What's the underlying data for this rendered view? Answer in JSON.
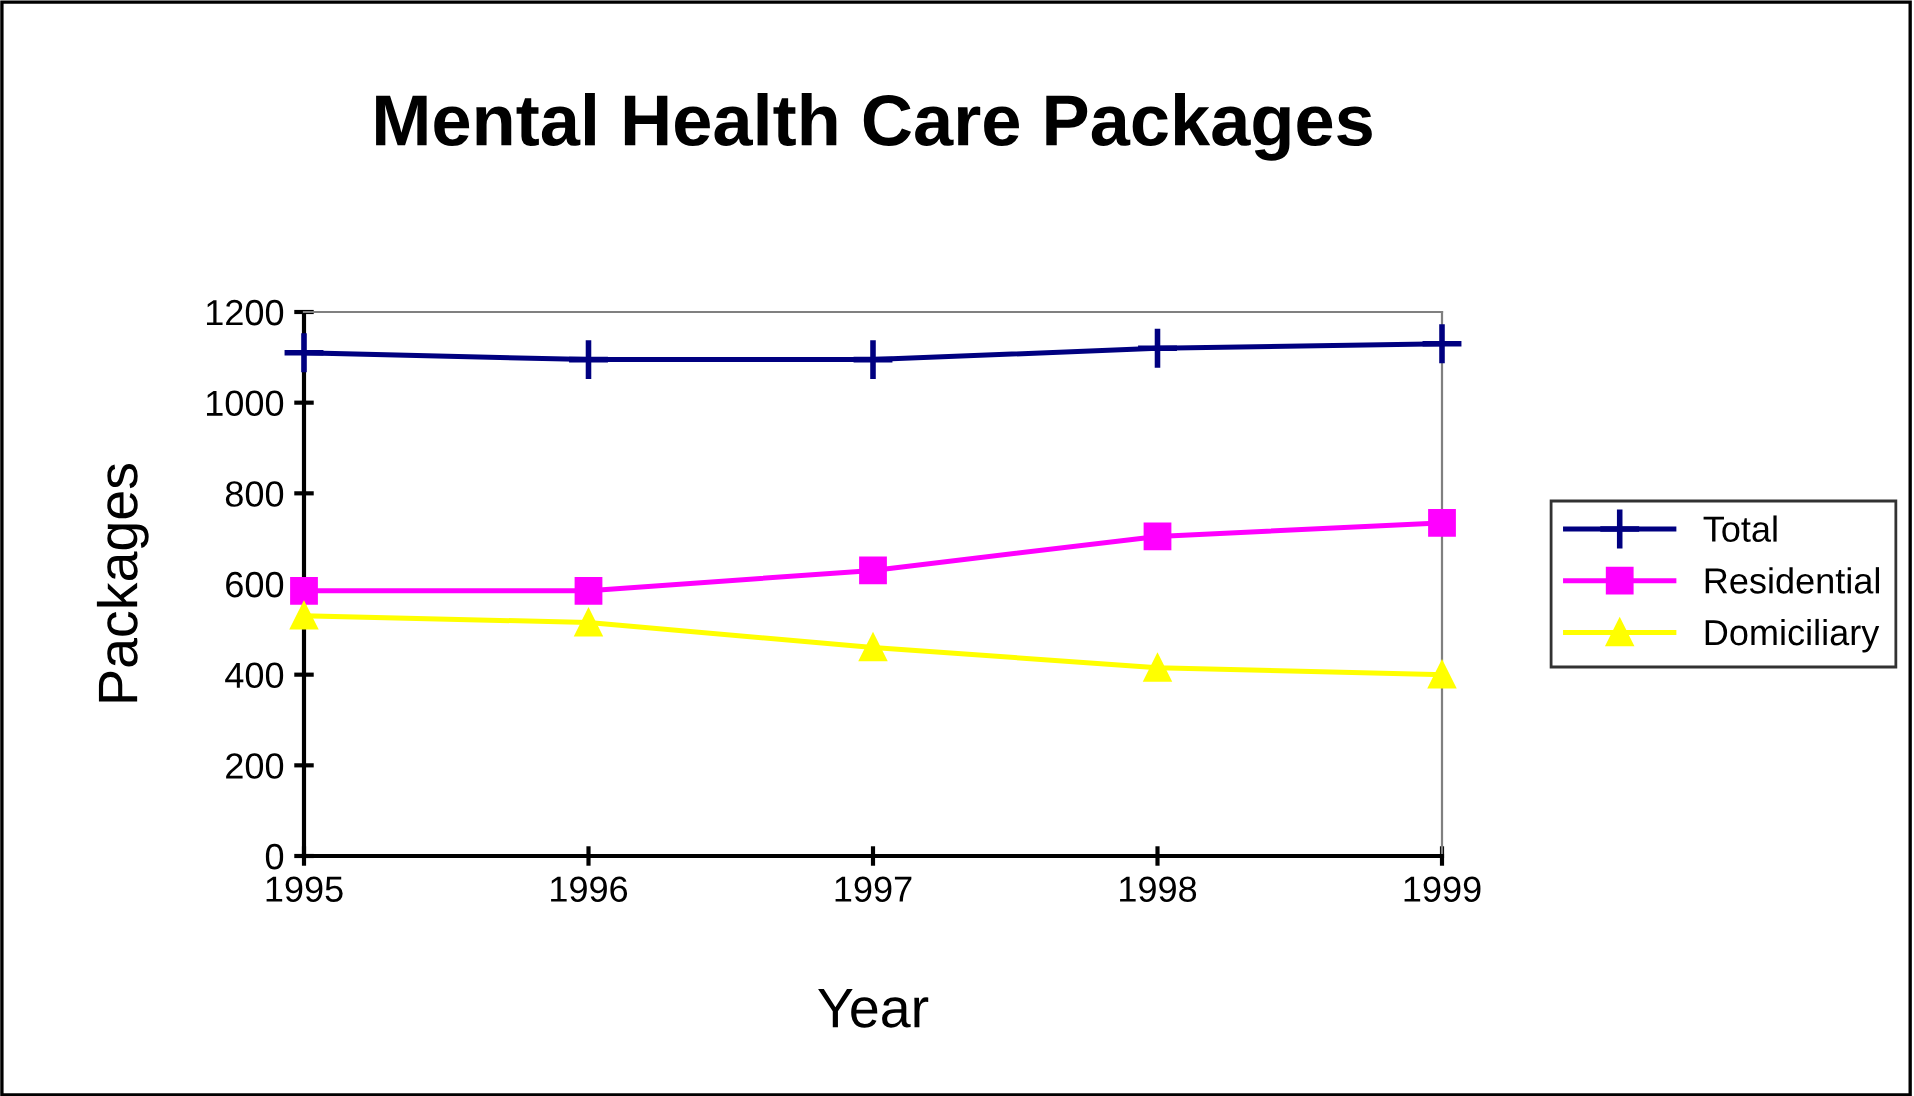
{
  "chart_data": {
    "type": "line",
    "title": "Mental Health Care Packages",
    "xlabel": "Year",
    "ylabel": "Packages",
    "categories": [
      "1995",
      "1996",
      "1997",
      "1998",
      "1999"
    ],
    "series": [
      {
        "name": "Total",
        "color": "#000080",
        "marker": "cross",
        "values": [
          1110,
          1095,
          1095,
          1120,
          1130
        ]
      },
      {
        "name": "Residential",
        "color": "#ff00ff",
        "marker": "square",
        "values": [
          585,
          585,
          630,
          705,
          735
        ]
      },
      {
        "name": "Domiciliary",
        "color": "#ffff00",
        "marker": "triangle",
        "values": [
          530,
          515,
          460,
          415,
          400
        ]
      }
    ],
    "ylim": [
      0,
      1200
    ],
    "yticks": [
      0,
      200,
      400,
      600,
      800,
      1000,
      1200
    ],
    "grid": false,
    "legend": "right"
  }
}
